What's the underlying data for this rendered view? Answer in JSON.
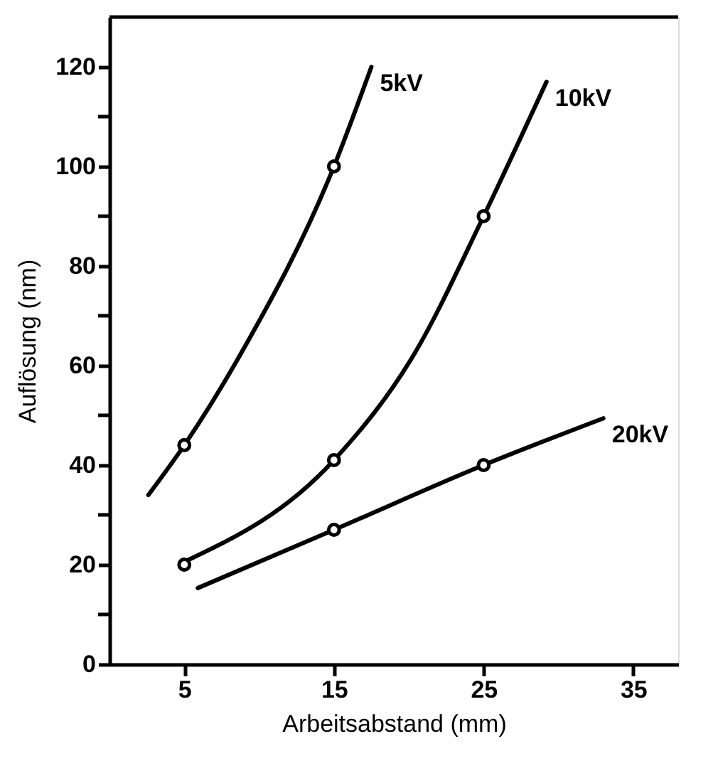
{
  "chart_data": {
    "type": "line",
    "xlabel": "Arbeitsabstand (mm)",
    "ylabel": "Auflösung (nm)",
    "xlim": [
      0,
      38
    ],
    "xticks": [
      5,
      15,
      25,
      35
    ],
    "ylim": [
      0,
      130
    ],
    "yticks": [
      0,
      {
        "value": 10,
        "label": null
      },
      20,
      {
        "value": 30,
        "label": null
      },
      40,
      {
        "value": 50,
        "label": null
      },
      60,
      {
        "value": 70,
        "label": null
      },
      80,
      {
        "value": 90,
        "label": null
      },
      100,
      {
        "value": 110,
        "label": null
      },
      120
    ],
    "grid": false,
    "legend": false,
    "series": [
      {
        "name": "5kV",
        "color": "#000000",
        "x": [
          2.6,
          5,
          8.8,
          15,
          17.5
        ],
        "values": [
          34,
          44,
          62.5,
          100,
          120
        ]
      },
      {
        "name": "10kV",
        "color": "#000000",
        "x": [
          5.3,
          15,
          20.4,
          25,
          29.2
        ],
        "values": [
          21,
          41,
          62.5,
          90,
          117
        ]
      },
      {
        "name": "20kV",
        "color": "#000000",
        "x": [
          5.9,
          15,
          25,
          33
        ],
        "values": [
          15.3,
          27,
          40,
          49.4
        ]
      },
      {
        "type": "scatter",
        "marker": "circle",
        "color": "#000000",
        "x": [
          5,
          15,
          5,
          15,
          25,
          15,
          25
        ],
        "values": [
          44,
          100,
          20,
          41,
          90,
          27,
          40
        ]
      }
    ]
  }
}
